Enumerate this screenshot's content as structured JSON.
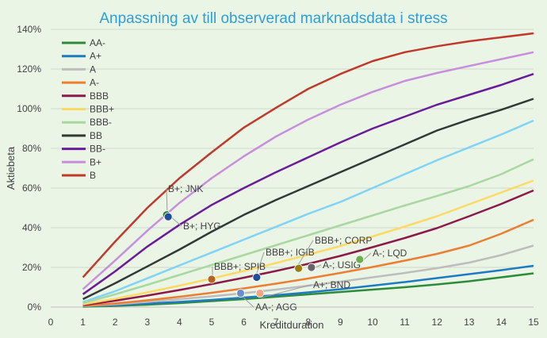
{
  "chart_data": {
    "type": "line",
    "title": "Anpassning av till observerad marknadsdata i stress",
    "xlabel": "Kreditduration",
    "ylabel": "Aktiebeta",
    "xlim": [
      0,
      15
    ],
    "ylim": [
      0,
      1.4
    ],
    "x_ticks": [
      0,
      1,
      2,
      3,
      4,
      5,
      6,
      7,
      8,
      9,
      10,
      11,
      12,
      13,
      14,
      15
    ],
    "y_ticks": [
      0,
      0.2,
      0.4,
      0.6,
      0.8,
      1.0,
      1.2,
      1.4
    ],
    "y_tick_labels": [
      "0%",
      "20%",
      "40%",
      "60%",
      "80%",
      "100%",
      "120%",
      "140%"
    ],
    "grid": "horizontal",
    "legend_position": "top-left",
    "x": [
      1,
      2,
      3,
      4,
      5,
      6,
      7,
      8,
      9,
      10,
      11,
      12,
      13,
      14,
      15
    ],
    "series": [
      {
        "name": "AA-",
        "color": "#2e8b3a",
        "values": [
          0.002,
          0.006,
          0.012,
          0.02,
          0.03,
          0.04,
          0.052,
          0.064,
          0.076,
          0.088,
          0.1,
          0.114,
          0.13,
          0.15,
          0.17
        ]
      },
      {
        "name": "A+",
        "color": "#1f7bbf",
        "values": [
          0.004,
          0.01,
          0.018,
          0.026,
          0.036,
          0.048,
          0.06,
          0.074,
          0.09,
          0.108,
          0.126,
          0.146,
          0.166,
          0.186,
          0.208
        ]
      },
      {
        "name": "A",
        "color": "#bdbdbd",
        "values": [
          0.005,
          0.014,
          0.026,
          0.04,
          0.054,
          0.07,
          0.088,
          0.108,
          0.128,
          0.15,
          0.172,
          0.196,
          0.224,
          0.262,
          0.31
        ]
      },
      {
        "name": "A-",
        "color": "#ed7d31",
        "values": [
          0.006,
          0.018,
          0.034,
          0.052,
          0.072,
          0.094,
          0.118,
          0.144,
          0.172,
          0.202,
          0.234,
          0.268,
          0.31,
          0.37,
          0.44
        ]
      },
      {
        "name": "BBB",
        "color": "#8b1a4a",
        "values": [
          0.01,
          0.032,
          0.058,
          0.086,
          0.116,
          0.148,
          0.182,
          0.218,
          0.258,
          0.302,
          0.348,
          0.398,
          0.458,
          0.52,
          0.588
        ]
      },
      {
        "name": "BBB+",
        "color": "#ffd966",
        "values": [
          0.014,
          0.042,
          0.074,
          0.108,
          0.144,
          0.182,
          0.222,
          0.264,
          0.308,
          0.356,
          0.406,
          0.458,
          0.518,
          0.578,
          0.638
        ]
      },
      {
        "name": "BBB-",
        "color": "#a8d8a0",
        "values": [
          0.02,
          0.064,
          0.112,
          0.162,
          0.212,
          0.262,
          0.312,
          0.362,
          0.412,
          0.462,
          0.512,
          0.56,
          0.61,
          0.67,
          0.745
        ]
      },
      {
        "name": "BB",
        "color": "#2f3a36",
        "values": [
          0.04,
          0.12,
          0.205,
          0.29,
          0.38,
          0.465,
          0.54,
          0.61,
          0.68,
          0.75,
          0.82,
          0.89,
          0.945,
          0.995,
          1.05
        ]
      },
      {
        "name": "BB-",
        "color": "#6a1b9a",
        "values": [
          0.065,
          0.18,
          0.305,
          0.415,
          0.515,
          0.6,
          0.68,
          0.755,
          0.83,
          0.9,
          0.96,
          1.02,
          1.07,
          1.12,
          1.175
        ]
      },
      {
        "name": "B+",
        "color": "#c88ede",
        "values": [
          0.09,
          0.235,
          0.385,
          0.525,
          0.65,
          0.76,
          0.86,
          0.945,
          1.02,
          1.085,
          1.14,
          1.18,
          1.215,
          1.25,
          1.285
        ]
      },
      {
        "name": "B",
        "color": "#c0392b",
        "values": [
          0.15,
          0.33,
          0.5,
          0.65,
          0.78,
          0.905,
          1.005,
          1.1,
          1.175,
          1.24,
          1.285,
          1.315,
          1.34,
          1.36,
          1.38
        ]
      }
    ],
    "extra_lines": [
      {
        "color": "#7fd3f7",
        "values": [
          0.025,
          0.08,
          0.145,
          0.21,
          0.275,
          0.34,
          0.405,
          0.47,
          0.53,
          0.6,
          0.67,
          0.74,
          0.805,
          0.87,
          0.94
        ]
      }
    ],
    "points": [
      {
        "label": "B+; JNK",
        "x": 3.6,
        "y": 0.465,
        "color": "#2e7d32"
      },
      {
        "label": "B+; HYG",
        "x": 3.65,
        "y": 0.455,
        "color": "#1f4e9c"
      },
      {
        "label": "BBB+; SPIB",
        "x": 5.0,
        "y": 0.14,
        "color": "#b5651d"
      },
      {
        "label": "AA-; AGG",
        "x": 5.9,
        "y": 0.07,
        "color": "#6a8fd0"
      },
      {
        "label": "",
        "x": 6.5,
        "y": 0.07,
        "color": "#f4a582"
      },
      {
        "label": "BBB+; IGIB",
        "x": 6.4,
        "y": 0.15,
        "color": "#1f4e9c"
      },
      {
        "label": "BBB+; CORP",
        "x": 7.7,
        "y": 0.195,
        "color": "#9a7d0a"
      },
      {
        "label": "A-; USIG",
        "x": 8.1,
        "y": 0.2,
        "color": "#666666"
      },
      {
        "label": "A+; BND",
        "x": 8.1,
        "y": 0.2,
        "color": "#666666"
      },
      {
        "label": "A-; LQD",
        "x": 9.6,
        "y": 0.24,
        "color": "#6ab04c"
      }
    ]
  }
}
